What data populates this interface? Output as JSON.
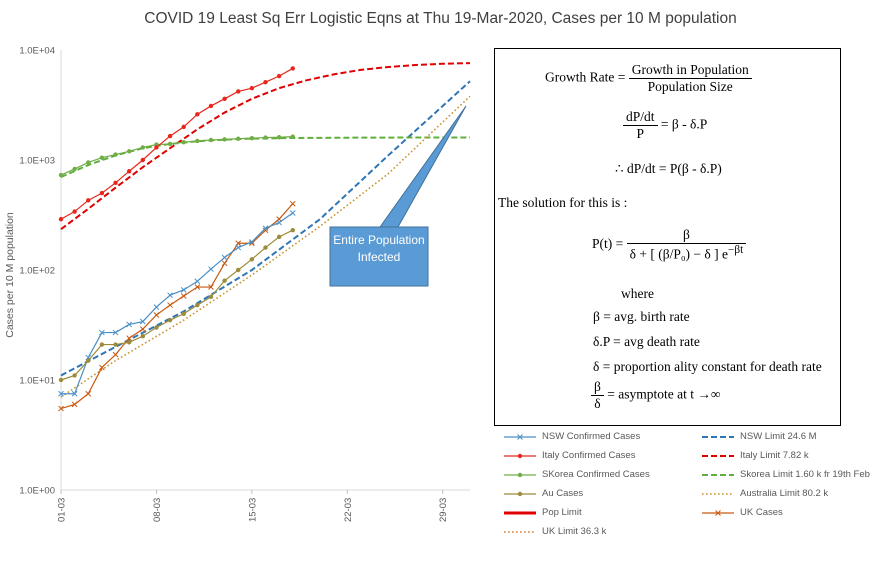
{
  "chart_data": {
    "type": "line",
    "title": "COVID 19 Least Sq Err Logistic Eqns at Thu 19-Mar-2020, Cases per 10 M population",
    "ylabel": "Cases per 10 M population",
    "xlabel": "",
    "yscale": "log",
    "ylim": [
      1,
      10000
    ],
    "y_ticks": [
      "1.0E+00",
      "1.0E+01",
      "1.0E+02",
      "1.0E+03",
      "1.0E+04"
    ],
    "x_ticks": [
      "01-03",
      "08-03",
      "15-03",
      "22-03",
      "29-03"
    ],
    "x_range_days": [
      1,
      31
    ],
    "series": [
      {
        "name": "NSW Confirmed Cases",
        "color": "#4a8fc7",
        "style": "line-x",
        "x": [
          1,
          2,
          3,
          4,
          5,
          6,
          7,
          8,
          9,
          10,
          11,
          12,
          13,
          14,
          15,
          16,
          17,
          18
        ],
        "y": [
          7.5,
          7.5,
          16,
          27,
          27,
          32,
          34,
          46,
          59,
          66,
          79,
          102,
          130,
          160,
          180,
          240,
          270,
          330
        ]
      },
      {
        "name": "NSW Limit 24.6 M",
        "color": "#2e75b6",
        "style": "dash",
        "x": [
          1,
          5,
          10,
          15,
          20,
          25,
          31
        ],
        "y": [
          11,
          20,
          42,
          100,
          290,
          1100,
          5200
        ]
      },
      {
        "name": "Italy Confirmed Cases",
        "color": "#e8261b",
        "style": "line-dot",
        "x": [
          1,
          2,
          3,
          4,
          5,
          6,
          7,
          8,
          9,
          10,
          11,
          12,
          13,
          14,
          15,
          16,
          17,
          18
        ],
        "y": [
          290,
          340,
          430,
          500,
          620,
          790,
          1000,
          1300,
          1650,
          2000,
          2600,
          3100,
          3600,
          4200,
          4500,
          5100,
          5800,
          6800
        ]
      },
      {
        "name": "Italy Limit 7.82 k",
        "color": "#e00000",
        "style": "dash",
        "x": [
          1,
          3,
          5,
          7,
          9,
          11,
          13,
          15,
          17,
          19,
          21,
          23,
          25,
          27,
          29,
          31
        ],
        "y": [
          235,
          360,
          560,
          860,
          1280,
          1900,
          2700,
          3600,
          4500,
          5300,
          6000,
          6600,
          7000,
          7300,
          7500,
          7600
        ]
      },
      {
        "name": "SKorea Confirmed Cases",
        "color": "#70ad47",
        "style": "line-dot",
        "x": [
          1,
          2,
          3,
          4,
          5,
          6,
          7,
          8,
          9,
          10,
          11,
          12,
          13,
          14,
          15,
          16,
          17,
          18
        ],
        "y": [
          730,
          830,
          950,
          1050,
          1120,
          1200,
          1300,
          1380,
          1400,
          1450,
          1490,
          1520,
          1540,
          1560,
          1580,
          1600,
          1610,
          1630
        ]
      },
      {
        "name": "Skorea Limit 1.60 k fr 19th Feb",
        "color": "#5faf3c",
        "style": "dash",
        "x": [
          1,
          3,
          5,
          7,
          9,
          11,
          13,
          15,
          18,
          22,
          26,
          31
        ],
        "y": [
          700,
          900,
          1100,
          1280,
          1400,
          1480,
          1530,
          1565,
          1585,
          1595,
          1600,
          1600
        ]
      },
      {
        "name": "Au Cases",
        "color": "#9c8b3a",
        "style": "line-dot",
        "x": [
          1,
          2,
          3,
          4,
          5,
          6,
          7,
          8,
          9,
          10,
          11,
          12,
          13,
          14,
          15,
          16,
          17,
          18
        ],
        "y": [
          10,
          11,
          15,
          21,
          21,
          22,
          25,
          30,
          35,
          40,
          48,
          57,
          80,
          100,
          125,
          160,
          200,
          230
        ]
      },
      {
        "name": "Australia Limit 80.2 k",
        "color": "#c69532",
        "style": "dot",
        "x": [
          1,
          5,
          10,
          15,
          20,
          25,
          31
        ],
        "y": [
          7,
          15,
          35,
          90,
          250,
          750,
          3800
        ]
      },
      {
        "name": "Pop Limit",
        "color": "#e00000",
        "style": "thick",
        "x": [],
        "y": []
      },
      {
        "name": "UK Cases",
        "color": "#c65911",
        "style": "line-x",
        "x": [
          1,
          2,
          3,
          4,
          5,
          6,
          7,
          8,
          9,
          10,
          11,
          12,
          13,
          14,
          15,
          16,
          17,
          18
        ],
        "y": [
          5.5,
          6,
          7.5,
          13,
          17,
          24,
          29,
          39,
          48,
          58,
          70,
          70,
          115,
          175,
          175,
          230,
          290,
          400
        ]
      },
      {
        "name": "UK Limit 36.3 k",
        "color": "#d07f2e",
        "style": "dot",
        "x": [
          1,
          5,
          10,
          15,
          20,
          25,
          31
        ],
        "y": [
          7,
          16,
          45,
          140,
          480,
          1700,
          8000
        ]
      }
    ],
    "annotations": [
      {
        "text": "Entire Population Infected",
        "color": "#5b9bd5"
      }
    ],
    "legend_position": "bottom-right"
  },
  "formula": {
    "growth_rate": "Growth Rate =",
    "growth_num": "Growth in Population",
    "growth_den": "Population Size",
    "line2": "= β - δ.P",
    "line3": "= P(β - δ.P)",
    "solution": "The solution for this is :",
    "pt": "P(t) =",
    "where": "where",
    "def1": "β = avg. birth rate",
    "def2": "δ.P = avg death rate",
    "def3": "δ = proportion ality constant for death rate",
    "def4": "= asymptote at t →∞"
  }
}
